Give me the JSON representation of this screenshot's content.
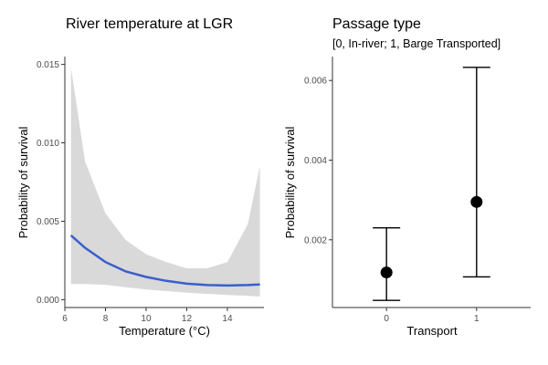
{
  "chart_data": [
    {
      "type": "line",
      "title": "River temperature at LGR",
      "xlabel": "Temperature (°C)",
      "ylabel": "Probability of survival",
      "xlim": [
        6,
        15.8
      ],
      "ylim": [
        -0.0005,
        0.0155
      ],
      "xticks": [
        "6",
        "8",
        "10",
        "12",
        "14"
      ],
      "yticks": [
        "0.000",
        "0.005",
        "0.010",
        "0.015"
      ],
      "colors": {
        "line": "#3a5fcd",
        "ribbon": "#d9d9d9"
      },
      "grid": false,
      "x": [
        6.3,
        7.0,
        8.0,
        9.0,
        10.0,
        11.0,
        12.0,
        13.0,
        14.0,
        15.0,
        15.6
      ],
      "series": [
        {
          "values": [
            0.0041,
            0.0033,
            0.0024,
            0.0018,
            0.00145,
            0.0012,
            0.00102,
            0.00093,
            0.0009,
            0.00093,
            0.00097
          ]
        }
      ],
      "ribbon": {
        "lower": [
          0.001,
          0.001,
          0.00095,
          0.0008,
          0.00065,
          0.00055,
          0.00045,
          0.00037,
          0.0003,
          0.00025,
          0.0002
        ],
        "upper": [
          0.0148,
          0.0088,
          0.0055,
          0.0038,
          0.0029,
          0.0024,
          0.002,
          0.002,
          0.0024,
          0.0048,
          0.0085
        ]
      }
    },
    {
      "type": "scatter",
      "title": "Passage type",
      "subtitle": "[0, In-river; 1, Barge Transported]",
      "xlabel": "Transport",
      "ylabel": "Probability of survival",
      "categories": [
        "0",
        "1"
      ],
      "xlim": [
        -0.6,
        1.6
      ],
      "ylim": [
        0.0003,
        0.0066
      ],
      "yticks": [
        "0.002",
        "0.004",
        "0.006"
      ],
      "grid": false,
      "points": [
        {
          "category": "0",
          "value": 0.00118,
          "lower": 0.00048,
          "upper": 0.0023
        },
        {
          "category": "1",
          "value": 0.00295,
          "lower": 0.00107,
          "upper": 0.00633
        }
      ]
    }
  ]
}
